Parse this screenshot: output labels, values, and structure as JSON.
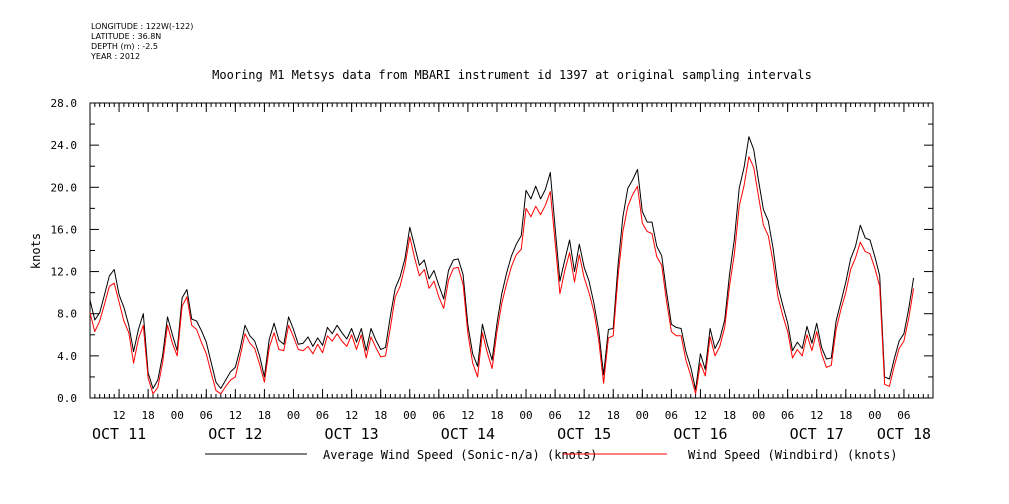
{
  "metadata": [
    "LONGITUDE : 122W(-122)",
    "LATITUDE : 36.8N",
    "DEPTH (m) : -2.5",
    "YEAR : 2012"
  ],
  "chart_data": {
    "type": "line",
    "title": "Mooring M1 Metsys data from MBARI instrument id 1397 at original sampling intervals",
    "ylabel": "knots",
    "xlabel": "",
    "ylim": [
      0,
      28
    ],
    "yticks": [
      "0.0",
      "4.0",
      "8.0",
      "12.0",
      "16.0",
      "20.0",
      "24.0",
      "28.0"
    ],
    "x_unit": "hours since OCT 11 00:00",
    "xlim": [
      6,
      180
    ],
    "hour_ticks": [
      {
        "x": 12,
        "label": "12"
      },
      {
        "x": 18,
        "label": "18"
      },
      {
        "x": 24,
        "label": "00"
      },
      {
        "x": 30,
        "label": "06"
      },
      {
        "x": 36,
        "label": "12"
      },
      {
        "x": 42,
        "label": "18"
      },
      {
        "x": 48,
        "label": "00"
      },
      {
        "x": 54,
        "label": "06"
      },
      {
        "x": 60,
        "label": "12"
      },
      {
        "x": 66,
        "label": "18"
      },
      {
        "x": 72,
        "label": "00"
      },
      {
        "x": 78,
        "label": "06"
      },
      {
        "x": 84,
        "label": "12"
      },
      {
        "x": 90,
        "label": "18"
      },
      {
        "x": 96,
        "label": "00"
      },
      {
        "x": 102,
        "label": "06"
      },
      {
        "x": 108,
        "label": "12"
      },
      {
        "x": 114,
        "label": "18"
      },
      {
        "x": 120,
        "label": "00"
      },
      {
        "x": 126,
        "label": "06"
      },
      {
        "x": 132,
        "label": "12"
      },
      {
        "x": 138,
        "label": "18"
      },
      {
        "x": 144,
        "label": "00"
      },
      {
        "x": 150,
        "label": "06"
      },
      {
        "x": 156,
        "label": "12"
      },
      {
        "x": 162,
        "label": "18"
      },
      {
        "x": 168,
        "label": "00"
      },
      {
        "x": 174,
        "label": "06"
      }
    ],
    "day_labels": [
      {
        "x": 12,
        "label": "OCT 11"
      },
      {
        "x": 36,
        "label": "OCT 12"
      },
      {
        "x": 60,
        "label": "OCT 13"
      },
      {
        "x": 84,
        "label": "OCT 14"
      },
      {
        "x": 108,
        "label": "OCT 15"
      },
      {
        "x": 132,
        "label": "OCT 16"
      },
      {
        "x": 156,
        "label": "OCT 17"
      },
      {
        "x": 174,
        "label": "OCT 18"
      }
    ],
    "legend_position": "bottom",
    "series": [
      {
        "name": "Average Wind Speed (Sonic-n/a) (knots)",
        "color": "#000000",
        "x": [
          6,
          7,
          8,
          9,
          10,
          11,
          12,
          13,
          14,
          15,
          16,
          17,
          18,
          19,
          20,
          21,
          22,
          23,
          24,
          25,
          26,
          27,
          28,
          29,
          30,
          31,
          32,
          33,
          34,
          35,
          36,
          37,
          38,
          39,
          40,
          41,
          42,
          43,
          44,
          45,
          46,
          47,
          48,
          49,
          50,
          51,
          52,
          53,
          54,
          55,
          56,
          57,
          58,
          59,
          60,
          61,
          62,
          63,
          64,
          65,
          66,
          67,
          68,
          69,
          70,
          71,
          72,
          73,
          74,
          75,
          76,
          77,
          78,
          79,
          80,
          81,
          82,
          83,
          84,
          85,
          86,
          87,
          88,
          89,
          90,
          91,
          92,
          93,
          94,
          95,
          96,
          97,
          98,
          99,
          100,
          101,
          102,
          103,
          104,
          105,
          106,
          107,
          108,
          109,
          110,
          111,
          112,
          113,
          114,
          115,
          116,
          117,
          118,
          119,
          120,
          121,
          122,
          123,
          124,
          125,
          126,
          127,
          128,
          129,
          130,
          131,
          132,
          133,
          134,
          135,
          136,
          137,
          138,
          139,
          140,
          141,
          142,
          143,
          144,
          145,
          146,
          147,
          148,
          149,
          150,
          151,
          152,
          153,
          154,
          155,
          156,
          157,
          158,
          159,
          160,
          161,
          162,
          163,
          164,
          165,
          166,
          167,
          168,
          169,
          170,
          171,
          172,
          173,
          174,
          175,
          176
        ],
        "values": [
          9.3,
          7.4,
          8.1,
          9.8,
          11.6,
          12.2,
          9.8,
          8.6,
          6.9,
          4.4,
          6.5,
          8.0,
          2.4,
          0.9,
          1.7,
          4.1,
          7.7,
          6.0,
          4.5,
          9.5,
          10.3,
          7.5,
          7.3,
          6.4,
          5.3,
          3.4,
          1.5,
          0.9,
          1.7,
          2.5,
          2.9,
          4.7,
          6.9,
          5.9,
          5.4,
          4.0,
          2.0,
          5.6,
          7.1,
          5.5,
          5.1,
          7.7,
          6.5,
          5.1,
          5.2,
          5.8,
          4.9,
          5.7,
          5.0,
          6.7,
          6.1,
          6.9,
          6.2,
          5.6,
          6.6,
          5.3,
          6.6,
          4.5,
          6.6,
          5.5,
          4.6,
          4.8,
          7.8,
          10.4,
          11.5,
          13.2,
          16.2,
          14.4,
          12.6,
          13.1,
          11.3,
          12.1,
          10.7,
          9.4,
          12.1,
          13.1,
          13.2,
          11.7,
          6.9,
          4.2,
          3.0,
          7.0,
          5.1,
          3.6,
          7.1,
          9.9,
          11.9,
          13.5,
          14.6,
          15.4,
          19.7,
          18.9,
          20.1,
          18.9,
          19.8,
          21.4,
          16.2,
          11.1,
          13.1,
          15.0,
          12.0,
          14.6,
          12.4,
          11.1,
          9.0,
          6.4,
          2.2,
          6.5,
          6.6,
          12.7,
          17.2,
          19.9,
          20.7,
          21.7,
          17.7,
          16.7,
          16.7,
          14.4,
          13.5,
          10.1,
          7.0,
          6.7,
          6.6,
          4.4,
          2.9,
          0.8,
          4.2,
          2.7,
          6.6,
          4.7,
          5.6,
          7.4,
          11.7,
          15.1,
          19.9,
          21.9,
          24.8,
          23.6,
          20.6,
          17.9,
          16.8,
          14.2,
          10.6,
          8.8,
          7.1,
          4.5,
          5.3,
          4.7,
          6.8,
          5.2,
          7.1,
          4.8,
          3.7,
          3.8,
          7.3,
          9.1,
          11.0,
          13.2,
          14.4,
          16.4,
          15.2,
          15.0,
          13.4,
          11.6,
          2.0,
          1.8,
          3.7,
          5.4,
          6.1,
          8.5,
          11.4
        ]
      },
      {
        "name": "Wind Speed (Windbird) (knots)",
        "color": "#ff0000",
        "x": [
          6,
          7,
          8,
          9,
          10,
          11,
          12,
          13,
          14,
          15,
          16,
          17,
          18,
          19,
          20,
          21,
          22,
          23,
          24,
          25,
          26,
          27,
          28,
          29,
          30,
          31,
          32,
          33,
          34,
          35,
          36,
          37,
          38,
          39,
          40,
          41,
          42,
          43,
          44,
          45,
          46,
          47,
          48,
          49,
          50,
          51,
          52,
          53,
          54,
          55,
          56,
          57,
          58,
          59,
          60,
          61,
          62,
          63,
          64,
          65,
          66,
          67,
          68,
          69,
          70,
          71,
          72,
          73,
          74,
          75,
          76,
          77,
          78,
          79,
          80,
          81,
          82,
          83,
          84,
          85,
          86,
          87,
          88,
          89,
          90,
          91,
          92,
          93,
          94,
          95,
          96,
          97,
          98,
          99,
          100,
          101,
          102,
          103,
          104,
          105,
          106,
          107,
          108,
          109,
          110,
          111,
          112,
          113,
          114,
          115,
          116,
          117,
          118,
          119,
          120,
          121,
          122,
          123,
          124,
          125,
          126,
          127,
          128,
          129,
          130,
          131,
          132,
          133,
          134,
          135,
          136,
          137,
          138,
          139,
          140,
          141,
          142,
          143,
          144,
          145,
          146,
          147,
          148,
          149,
          150,
          151,
          152,
          153,
          154,
          155,
          156,
          157,
          158,
          159,
          160,
          161,
          162,
          163,
          164,
          165,
          166,
          167,
          168,
          169,
          170,
          171,
          172,
          173,
          174,
          175,
          176
        ],
        "values": [
          8.1,
          6.3,
          7.3,
          8.9,
          10.6,
          10.9,
          9.1,
          7.3,
          6.2,
          3.3,
          5.6,
          6.9,
          1.9,
          0.4,
          1.0,
          3.4,
          6.9,
          5.2,
          4.0,
          8.7,
          9.6,
          6.9,
          6.5,
          5.3,
          4.2,
          2.4,
          0.7,
          0.4,
          1.1,
          1.7,
          2.0,
          4.0,
          6.1,
          5.2,
          4.7,
          3.2,
          1.5,
          4.8,
          6.2,
          4.6,
          4.5,
          6.9,
          5.8,
          4.6,
          4.5,
          4.9,
          4.2,
          5.1,
          4.3,
          5.9,
          5.4,
          6.1,
          5.4,
          4.9,
          6.0,
          4.6,
          6.0,
          3.8,
          5.8,
          4.8,
          3.9,
          4.0,
          6.7,
          9.6,
          10.6,
          12.5,
          15.3,
          13.3,
          11.6,
          12.2,
          10.4,
          11.1,
          9.6,
          8.5,
          11.2,
          12.3,
          12.4,
          10.8,
          6.1,
          3.3,
          2.0,
          6.2,
          4.3,
          2.8,
          6.3,
          9.0,
          10.9,
          12.5,
          13.6,
          14.1,
          18.0,
          17.2,
          18.2,
          17.4,
          18.3,
          19.6,
          14.8,
          9.9,
          12.1,
          13.8,
          11.0,
          13.6,
          11.4,
          10.0,
          8.2,
          5.5,
          1.4,
          5.7,
          5.9,
          11.6,
          15.8,
          18.2,
          19.3,
          20.1,
          16.6,
          15.8,
          15.6,
          13.4,
          12.6,
          9.2,
          6.3,
          5.9,
          5.9,
          3.6,
          2.1,
          0.4,
          3.3,
          2.1,
          5.8,
          4.0,
          4.9,
          6.7,
          10.6,
          13.7,
          18.2,
          20.2,
          22.9,
          21.9,
          19.1,
          16.4,
          15.4,
          12.9,
          9.6,
          7.8,
          6.3,
          3.8,
          4.6,
          4.0,
          6.0,
          4.5,
          6.3,
          4.2,
          2.9,
          3.1,
          6.5,
          8.4,
          10.0,
          12.2,
          13.3,
          14.8,
          13.9,
          13.7,
          12.3,
          10.6,
          1.3,
          1.1,
          3.0,
          4.7,
          5.4,
          7.6,
          10.4
        ]
      }
    ]
  }
}
